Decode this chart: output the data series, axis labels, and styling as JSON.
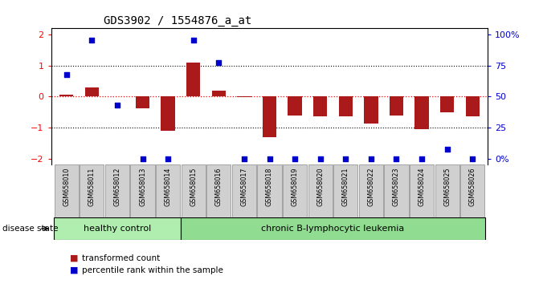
{
  "title": "GDS3902 / 1554876_a_at",
  "samples": [
    "GSM658010",
    "GSM658011",
    "GSM658012",
    "GSM658013",
    "GSM658014",
    "GSM658015",
    "GSM658016",
    "GSM658017",
    "GSM658018",
    "GSM658019",
    "GSM658020",
    "GSM658021",
    "GSM658022",
    "GSM658023",
    "GSM658024",
    "GSM658025",
    "GSM658026"
  ],
  "red_bars": [
    0.05,
    0.3,
    0.0,
    -0.38,
    -1.1,
    1.1,
    0.2,
    -0.02,
    -1.3,
    -0.6,
    -0.65,
    -0.65,
    -0.88,
    -0.62,
    -1.05,
    -0.52,
    -0.65
  ],
  "blue_y": [
    0.72,
    1.82,
    -0.28,
    -2.0,
    -2.0,
    1.82,
    1.1,
    -2.0,
    -2.0,
    -2.0,
    -2.0,
    -2.0,
    -2.0,
    -2.0,
    -2.0,
    -1.7,
    -2.0
  ],
  "healthy_count": 5,
  "disease_state_label": "disease state",
  "healthy_label": "healthy control",
  "leukemia_label": "chronic B-lymphocytic leukemia",
  "legend_red": "transformed count",
  "legend_blue": "percentile rank within the sample",
  "bar_color": "#AA1A1A",
  "dot_color": "#0000CC",
  "ylim": [
    -2.2,
    2.2
  ],
  "yticks_left": [
    -2,
    -1,
    0,
    1,
    2
  ],
  "right_tick_positions": [
    -2,
    -1,
    0,
    1,
    2
  ],
  "right_tick_labels": [
    "0%",
    "25",
    "50",
    "75",
    "100%"
  ],
  "healthy_color": "#B0EEB0",
  "leukemia_color": "#90DC90",
  "label_box_color": "#D0D0D0",
  "label_box_edge": "#888888"
}
